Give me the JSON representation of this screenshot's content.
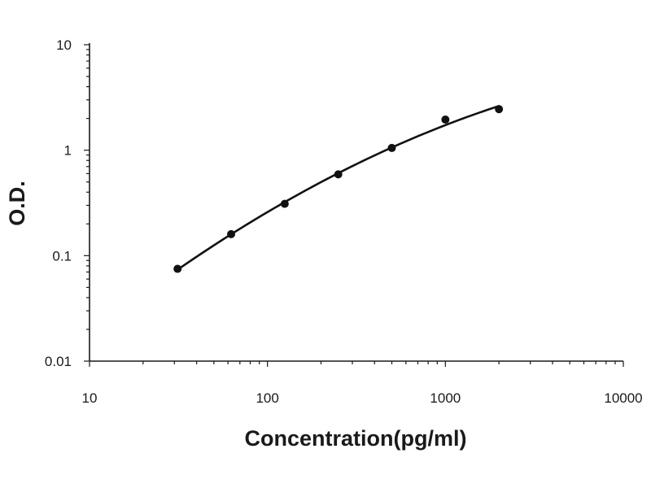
{
  "chart_data": {
    "type": "scatter",
    "title": "",
    "xlabel": "Concentration(pg/ml)",
    "ylabel": "O.D.",
    "xscale": "log",
    "yscale": "log",
    "xlim": [
      10,
      10000
    ],
    "ylim": [
      0.01,
      10
    ],
    "x_ticks": [
      10,
      100,
      1000,
      10000
    ],
    "x_tick_labels": [
      "10",
      "100",
      "1000",
      "10000"
    ],
    "y_ticks": [
      0.01,
      0.1,
      1,
      10
    ],
    "y_tick_labels": [
      "0.01",
      "0.1",
      "1",
      "10"
    ],
    "grid": false,
    "legend": "none",
    "colors": {
      "axis": "#1a1a1a",
      "marker": "#111111",
      "curve": "#111111"
    },
    "series": [
      {
        "x": [
          31.25,
          62.5,
          125,
          250,
          500,
          1000,
          2000
        ],
        "y": [
          0.075,
          0.16,
          0.31,
          0.59,
          1.05,
          1.95,
          2.45
        ],
        "fit": "curve"
      }
    ]
  }
}
